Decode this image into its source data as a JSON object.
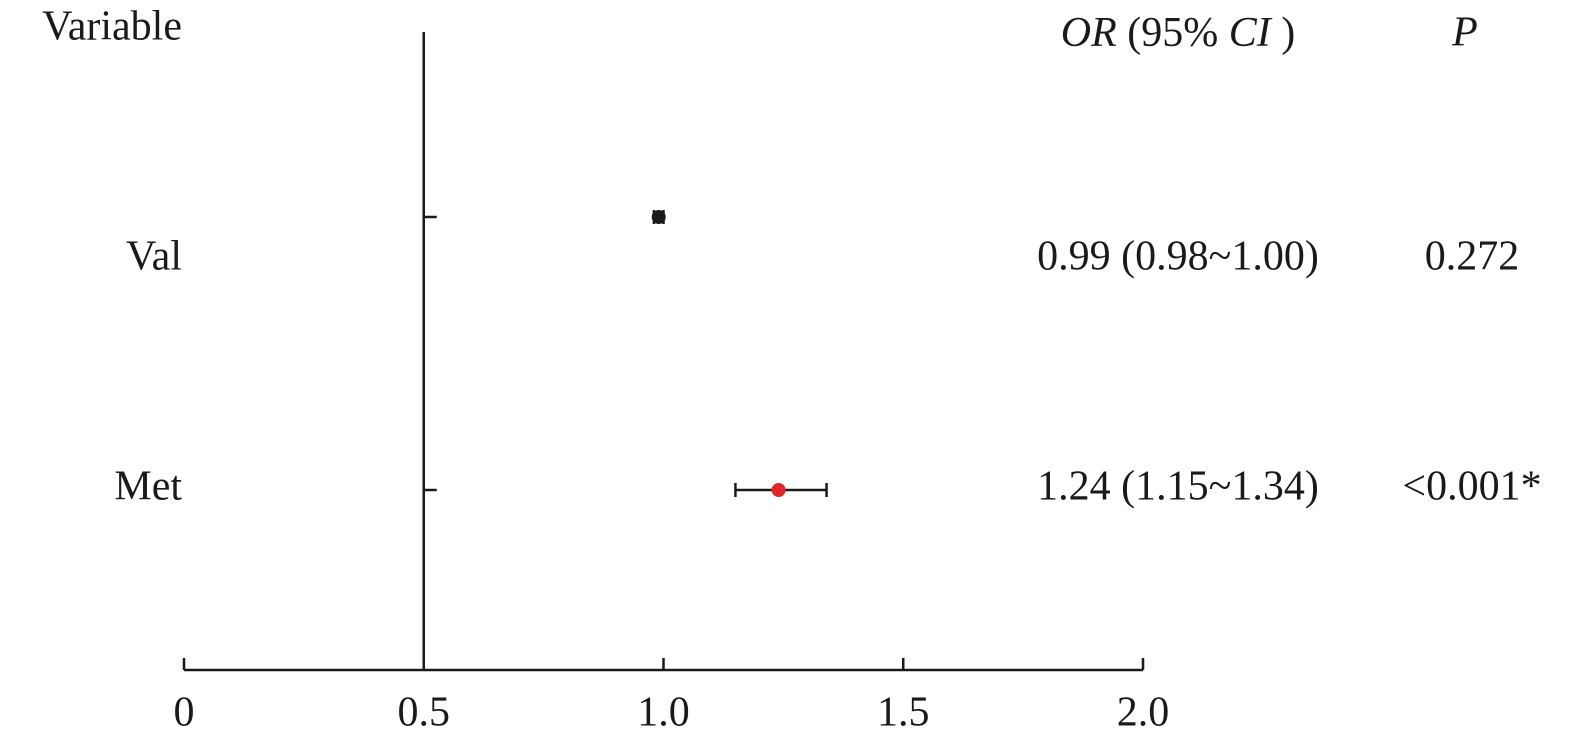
{
  "chart_data": {
    "type": "forest",
    "header_variable": "Variable",
    "header_or_ci": [
      "OR",
      "(95%",
      "CI",
      ")"
    ],
    "header_p": "P",
    "categories": [
      "Val",
      "Met"
    ],
    "values": [
      0.99,
      1.24
    ],
    "lower": [
      0.98,
      1.15
    ],
    "upper": [
      1.0,
      1.34
    ],
    "value_labels": [
      "0.99 (0.98~1.00)",
      "1.24 (1.15~1.34)"
    ],
    "p_values": [
      "0.272",
      "<0.001*"
    ],
    "colors": [
      "#1a1a1a",
      "#e0262b"
    ],
    "reference_line": 0.5,
    "xlim": [
      0,
      2.0
    ],
    "xticks": [
      0,
      0.5,
      {
        "value": 1.0,
        "label": "1.0"
      },
      1.5,
      {
        "value": 2.0,
        "label": "2.0"
      }
    ]
  }
}
